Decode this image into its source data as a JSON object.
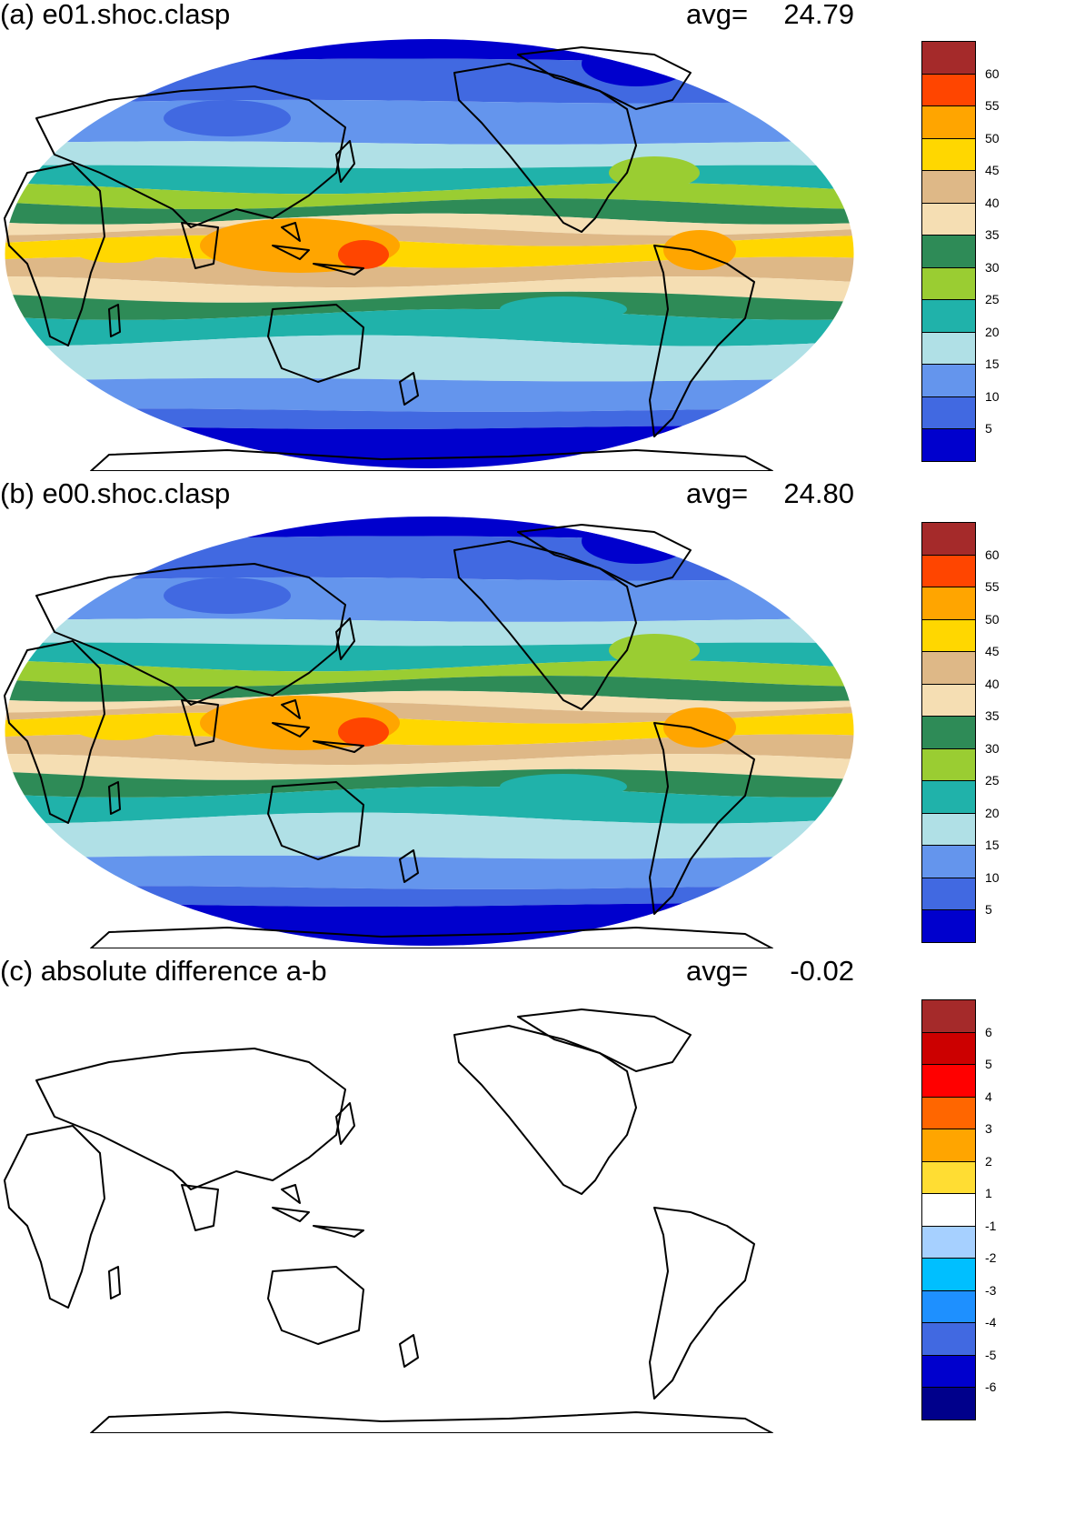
{
  "panels": [
    {
      "id": "a",
      "title": "(a) e01.shoc.clasp",
      "avg_label": "avg=",
      "avg_value": "24.79",
      "field": "full",
      "colorbar": {
        "colors": [
          "#a52a2a",
          "#ff4500",
          "#ffa500",
          "#ffd700",
          "#deb887",
          "#f5deb3",
          "#2e8b57",
          "#9acd32",
          "#20b2aa",
          "#b0e0e6",
          "#6495ed",
          "#4169e1",
          "#0000cd"
        ],
        "labels": [
          "60",
          "55",
          "50",
          "45",
          "40",
          "35",
          "30",
          "25",
          "20",
          "15",
          "10",
          "5"
        ]
      }
    },
    {
      "id": "b",
      "title": "(b) e00.shoc.clasp",
      "avg_label": "avg=",
      "avg_value": "24.80",
      "field": "full",
      "colorbar": {
        "colors": [
          "#a52a2a",
          "#ff4500",
          "#ffa500",
          "#ffd700",
          "#deb887",
          "#f5deb3",
          "#2e8b57",
          "#9acd32",
          "#20b2aa",
          "#b0e0e6",
          "#6495ed",
          "#4169e1",
          "#0000cd"
        ],
        "labels": [
          "60",
          "55",
          "50",
          "45",
          "40",
          "35",
          "30",
          "25",
          "20",
          "15",
          "10",
          "5"
        ]
      }
    },
    {
      "id": "c",
      "title": "(c) absolute difference a-b",
      "avg_label": "avg=",
      "avg_value": "-0.02",
      "field": "diff",
      "colorbar": {
        "colors": [
          "#a52a2a",
          "#cc0000",
          "#ff0000",
          "#ff6600",
          "#ffa500",
          "#ffdd33",
          "#ffffff",
          "#a6d0ff",
          "#00bfff",
          "#1e90ff",
          "#4169e1",
          "#0000cd",
          "#00008b"
        ],
        "labels": [
          "6",
          "5",
          "4",
          "3",
          "2",
          "1",
          "-1",
          "-2",
          "-3",
          "-4",
          "-5",
          "-6"
        ]
      }
    }
  ]
}
